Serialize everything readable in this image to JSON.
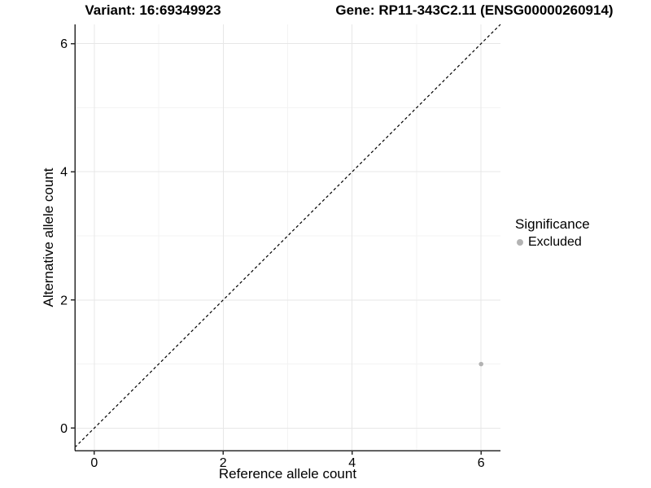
{
  "chart_data": {
    "type": "scatter",
    "title_left": "Variant: 16:69349923",
    "title_right": "Gene: RP11-343C2.11 (ENSG00000260914)",
    "xlabel": "Reference allele count",
    "ylabel": "Alternative allele count",
    "xlim": [
      -0.3,
      6.3
    ],
    "ylim": [
      -0.35,
      6.3
    ],
    "xticks": [
      0,
      2,
      4,
      6
    ],
    "yticks": [
      0,
      2,
      4,
      6
    ],
    "xticks_minor": [
      1,
      3,
      5
    ],
    "yticks_minor": [
      1,
      3,
      5
    ],
    "grid": "on",
    "reference_line": {
      "slope": 1,
      "intercept": 0,
      "linestyle": "dashed",
      "color": "#000000"
    },
    "series": [
      {
        "name": "Excluded",
        "color": "#b3b3b3",
        "marker": "circle",
        "points": [
          {
            "x": 6,
            "y": 1
          }
        ]
      }
    ],
    "legend": {
      "title": "Significance",
      "position": "right",
      "items": [
        {
          "label": "Excluded",
          "color": "#b3b3b3"
        }
      ]
    }
  },
  "colors": {
    "background": "#ffffff",
    "axis_line": "#2b2b2b",
    "grid_major": "#e7e7e7",
    "grid_minor": "#f3f3f3",
    "tick_text": "#000000",
    "point": "#b3b3b3"
  }
}
